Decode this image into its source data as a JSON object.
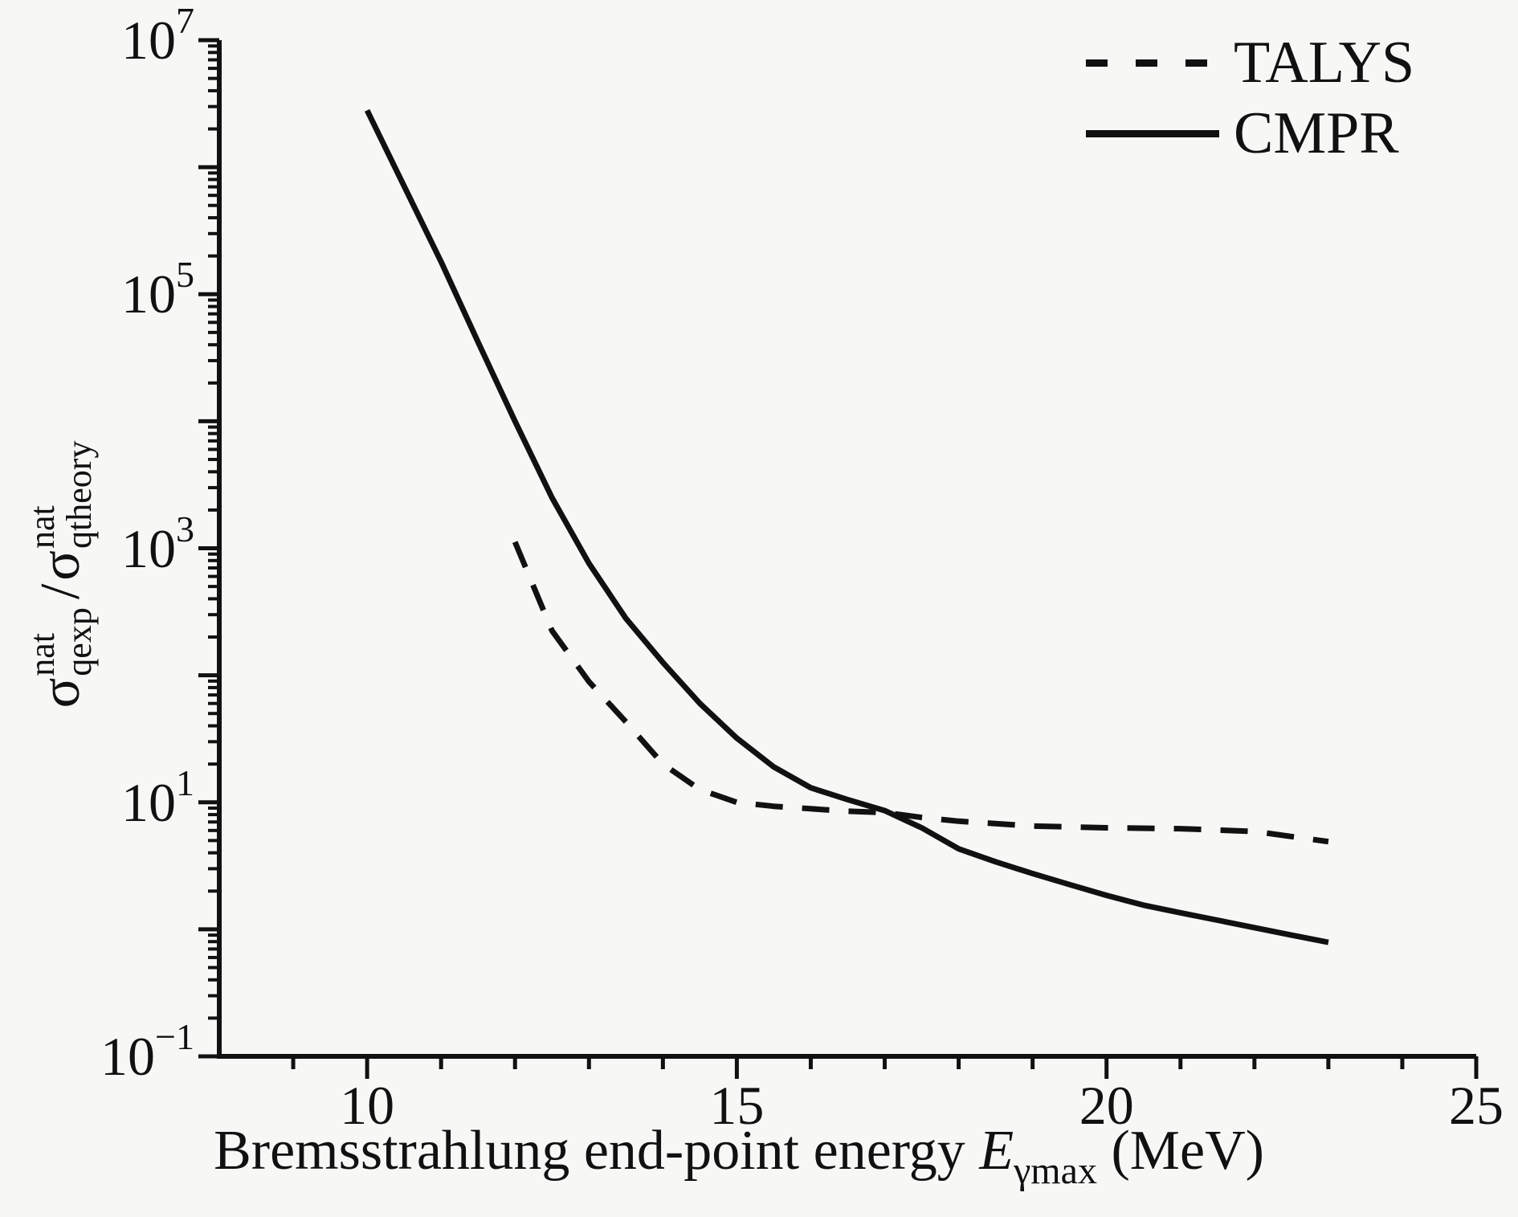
{
  "figure": {
    "background_color": "#f7f7f6",
    "line_color": "#111111"
  },
  "chart_data": {
    "type": "line",
    "title": "",
    "xlabel_parts": {
      "prefix": "Bremsstrahlung end-point energy ",
      "var": "E",
      "var_sub": "γmax",
      "suffix": " (MeV)"
    },
    "ylabel_parts": {
      "sigma": "σ",
      "sup": "nat",
      "sub_left": "qexp",
      "divider": "/",
      "sub_right": "qtheory"
    },
    "x_range": [
      8,
      25
    ],
    "y_log_range": [
      -1,
      7
    ],
    "x_major_ticks": [
      10,
      15,
      20,
      25
    ],
    "x_minor_tick_step": 1,
    "y_tick_base": "10",
    "y_labeled_exponents": [
      7,
      5,
      3,
      1,
      -1
    ],
    "grid": false,
    "legend_position": "top-right",
    "legend": [
      {
        "label": "TALYS",
        "style": "dashed"
      },
      {
        "label": "CMPR",
        "style": "solid"
      }
    ],
    "series": [
      {
        "name": "TALYS",
        "style": "dashed",
        "points": [
          [
            12,
            1120
          ],
          [
            12.5,
            224
          ],
          [
            13,
            89
          ],
          [
            13.5,
            43
          ],
          [
            14,
            20
          ],
          [
            14.5,
            12.6
          ],
          [
            15,
            10
          ],
          [
            15.5,
            9.3
          ],
          [
            16,
            8.9
          ],
          [
            16.5,
            8.5
          ],
          [
            17,
            8.3
          ],
          [
            17.5,
            7.6
          ],
          [
            18,
            7.1
          ],
          [
            19,
            6.5
          ],
          [
            20,
            6.3
          ],
          [
            21,
            6.2
          ],
          [
            22,
            5.9
          ],
          [
            23,
            4.9
          ]
        ]
      },
      {
        "name": "CMPR",
        "style": "solid",
        "points": [
          [
            10,
            2800000
          ],
          [
            10.5,
            710000
          ],
          [
            11,
            180000
          ],
          [
            11.5,
            42000
          ],
          [
            12,
            10000
          ],
          [
            12.5,
            2500
          ],
          [
            13,
            760
          ],
          [
            13.5,
            280
          ],
          [
            14,
            126
          ],
          [
            14.5,
            60
          ],
          [
            15,
            32
          ],
          [
            15.5,
            19
          ],
          [
            16,
            13
          ],
          [
            16.5,
            10.5
          ],
          [
            17,
            8.6
          ],
          [
            17.5,
            6.3
          ],
          [
            18,
            4.3
          ],
          [
            18.5,
            3.4
          ],
          [
            19,
            2.75
          ],
          [
            19.5,
            2.25
          ],
          [
            20,
            1.85
          ],
          [
            20.5,
            1.55
          ],
          [
            21,
            1.35
          ],
          [
            21.5,
            1.18
          ],
          [
            22,
            1.03
          ],
          [
            22.5,
            0.9
          ],
          [
            23,
            0.79
          ]
        ]
      }
    ]
  }
}
